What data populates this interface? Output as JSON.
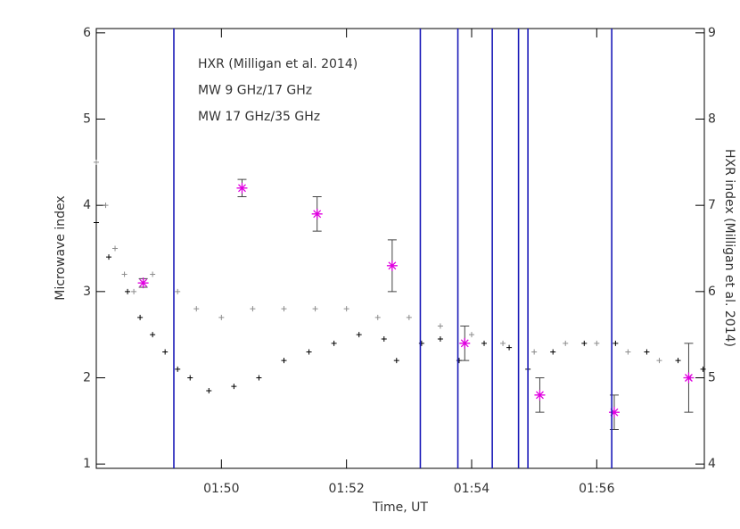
{
  "chart_data": {
    "type": "scatter",
    "xlabel": "Time, UT",
    "ylabel": "Microwave index",
    "y2label": "HXR index (Milligan et al. 2014)",
    "xlim": [
      48.0,
      57.72
    ],
    "xticks": [
      {
        "value": 50,
        "label": "01:50"
      },
      {
        "value": 52,
        "label": "01:52"
      },
      {
        "value": 54,
        "label": "01:54"
      },
      {
        "value": 56,
        "label": "01:56"
      }
    ],
    "ylim": [
      0.95,
      6.05
    ],
    "yticks": [
      1,
      2,
      3,
      4,
      5,
      6
    ],
    "y2lim": [
      3.95,
      9.05
    ],
    "y2ticks": [
      4,
      5,
      6,
      7,
      8,
      9
    ],
    "vlines": {
      "color": "#1a1ab8",
      "x": [
        49.24,
        53.18,
        53.78,
        54.33,
        54.75,
        54.9,
        56.24
      ]
    },
    "series": [
      {
        "name": "HXR (Milligan et al. 2014)",
        "color": "#e000e0",
        "axis": "y2",
        "x": [
          48.75,
          50.33,
          51.53,
          52.73,
          53.89,
          55.09,
          56.28,
          57.47
        ],
        "values": [
          6.1,
          7.2,
          6.9,
          6.3,
          5.4,
          4.8,
          4.6,
          5.0
        ],
        "errors": [
          0.05,
          0.1,
          0.2,
          0.3,
          0.2,
          0.2,
          0.2,
          0.4
        ]
      },
      {
        "name": "MW 9 GHz/17 GHz",
        "color": "#000000",
        "x": [
          48.0,
          48.2,
          48.5,
          48.7,
          48.9,
          49.1,
          49.3,
          49.5,
          49.8,
          50.2,
          50.6,
          51.0,
          51.4,
          51.8,
          52.2,
          52.6,
          52.8,
          53.2,
          53.5,
          53.8,
          54.2,
          54.6,
          54.9,
          55.3,
          55.8,
          56.3,
          56.8,
          57.3,
          57.7
        ],
        "values": [
          3.8,
          3.4,
          3.0,
          2.7,
          2.5,
          2.3,
          2.1,
          2.0,
          1.85,
          1.9,
          2.0,
          2.2,
          2.3,
          2.4,
          2.5,
          2.45,
          2.2,
          2.4,
          2.45,
          2.2,
          2.4,
          2.35,
          2.1,
          2.3,
          2.4,
          2.4,
          2.3,
          2.2,
          2.1
        ]
      },
      {
        "name": "MW 17 GHz/35 GHz",
        "color": "#8c8c8c",
        "x": [
          48.0,
          48.15,
          48.3,
          48.45,
          48.6,
          48.9,
          49.3,
          49.6,
          50.0,
          50.5,
          51.0,
          51.5,
          52.0,
          52.5,
          53.0,
          53.5,
          54.0,
          54.5,
          55.0,
          55.5,
          56.0,
          56.5,
          57.0,
          57.5
        ],
        "values": [
          4.5,
          4.0,
          3.5,
          3.2,
          3.0,
          3.2,
          3.0,
          2.8,
          2.7,
          2.8,
          2.8,
          2.8,
          2.8,
          2.7,
          2.7,
          2.6,
          2.5,
          2.4,
          2.3,
          2.4,
          2.4,
          2.3,
          2.2,
          2.0
        ]
      }
    ]
  }
}
